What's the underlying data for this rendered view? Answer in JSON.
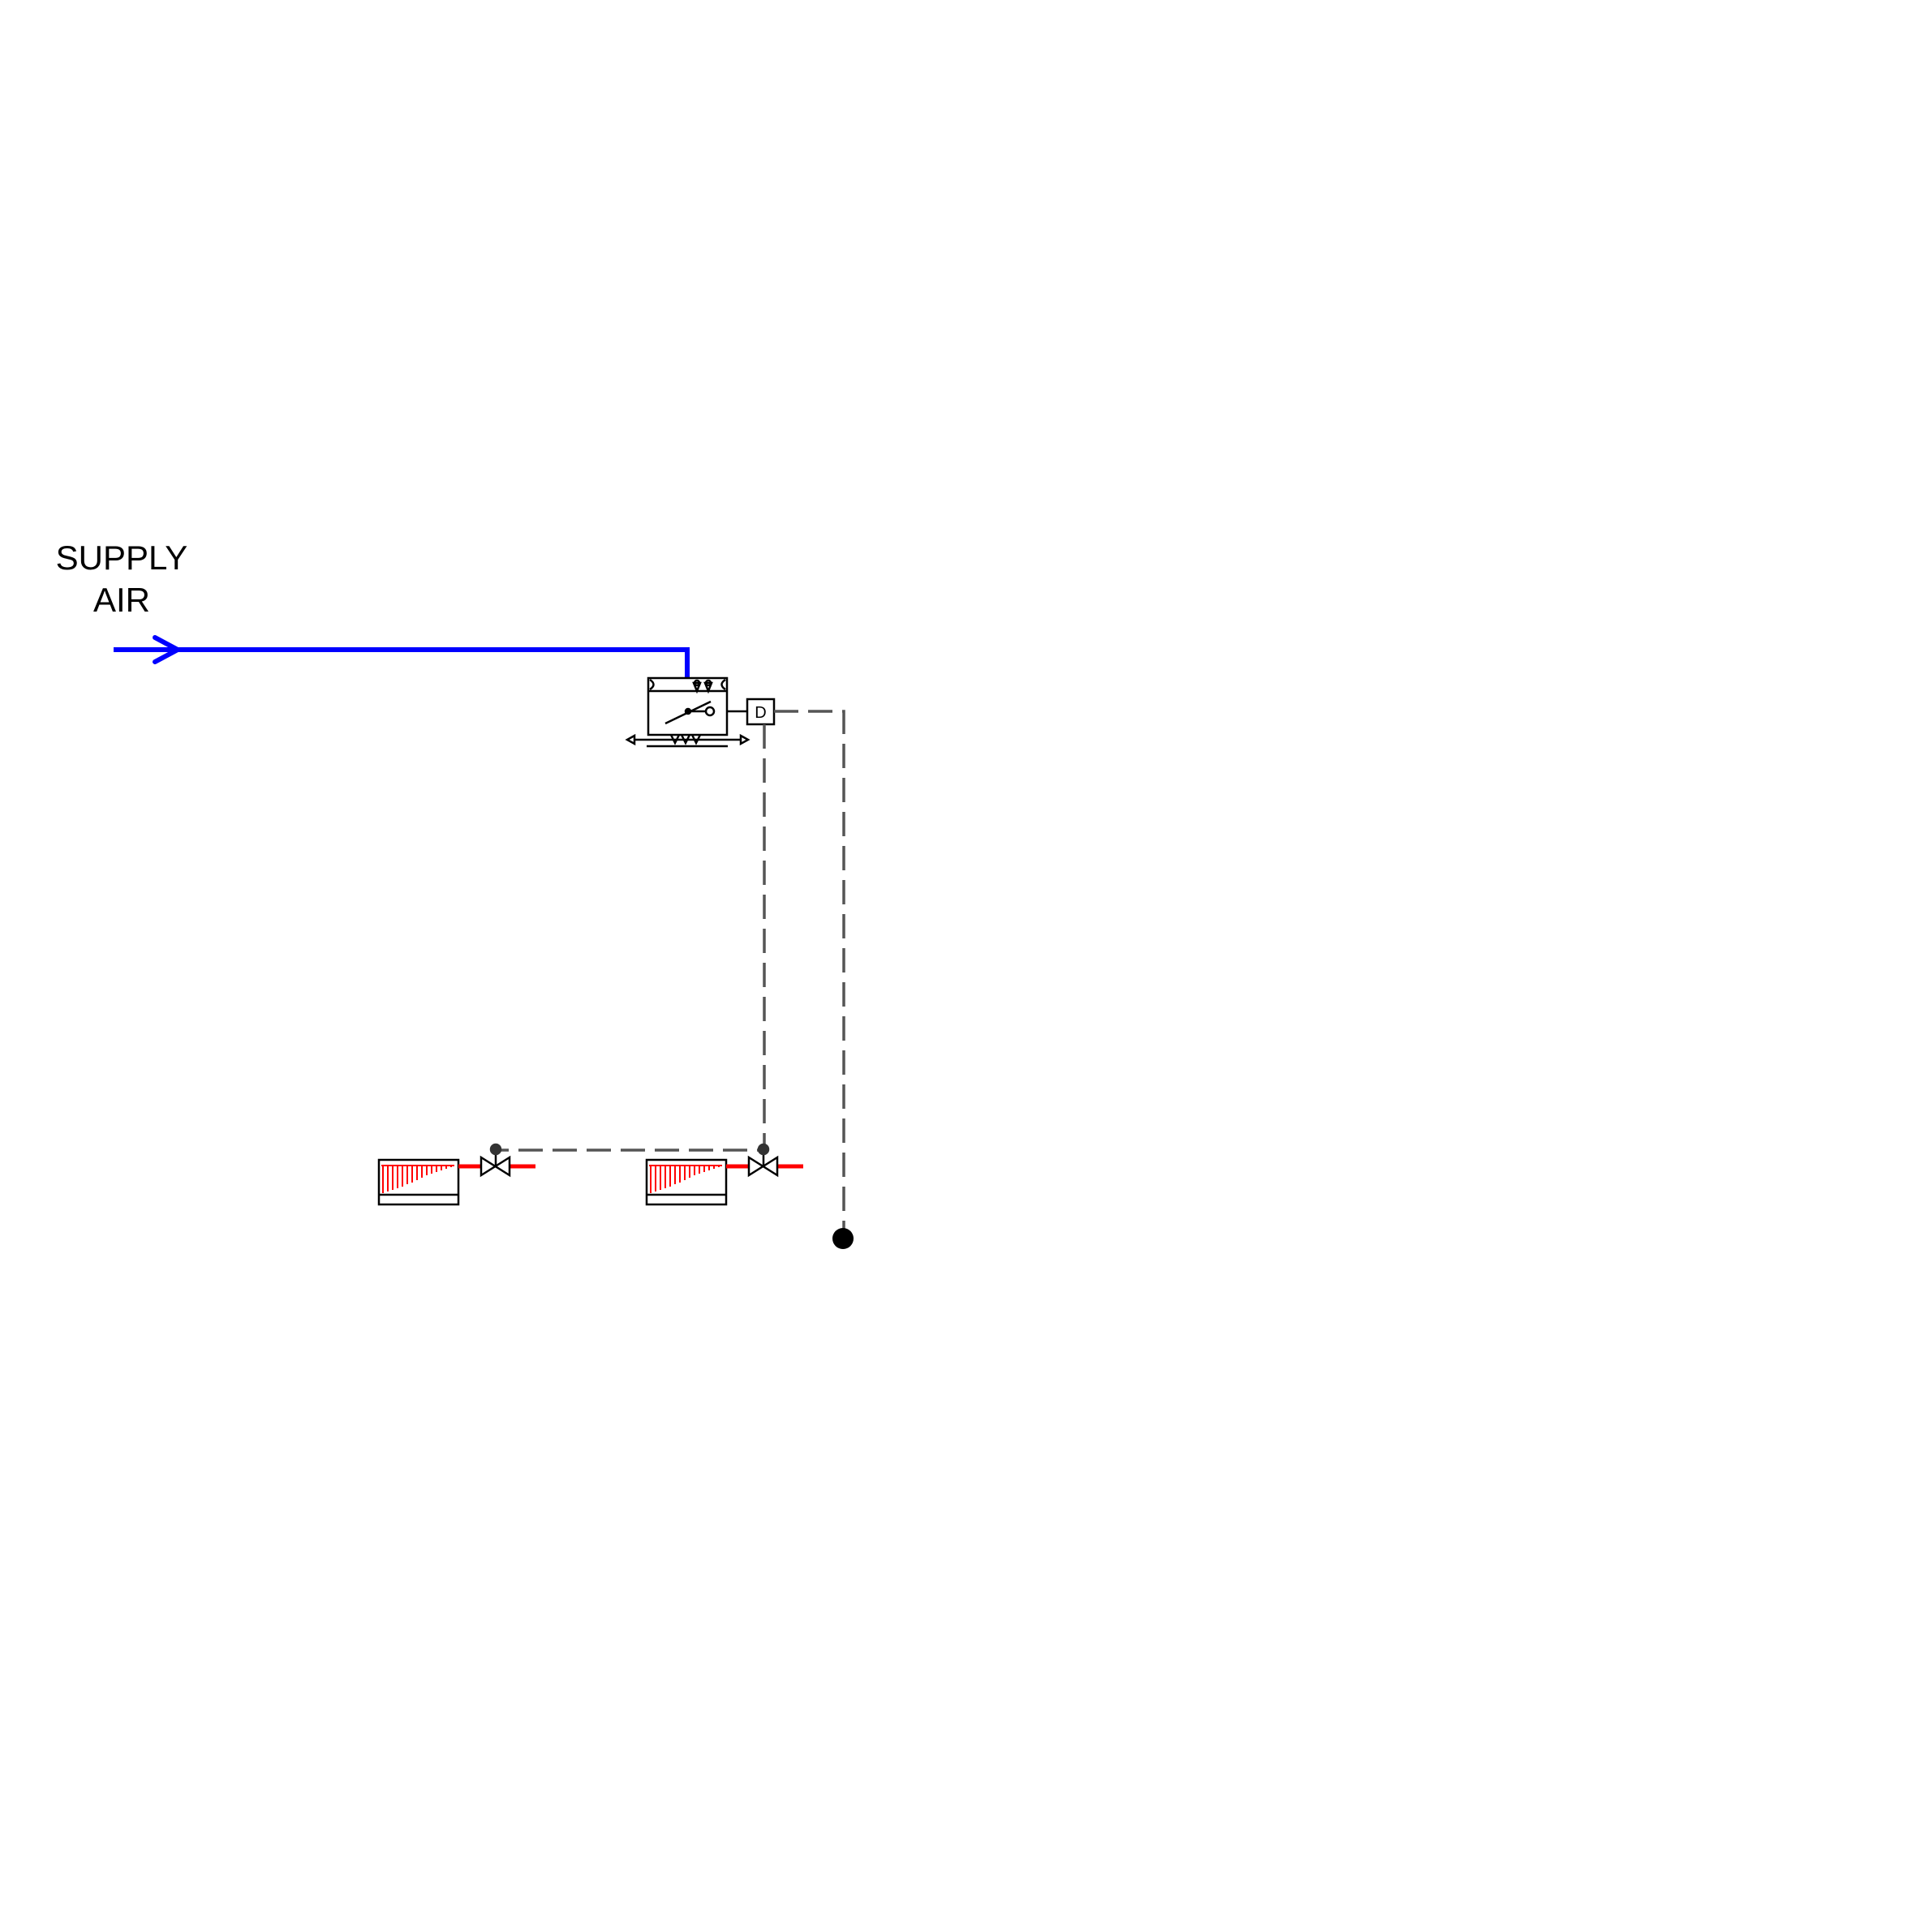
{
  "diagram": {
    "supply_label_line1": "SUPPLY",
    "supply_label_line2": "AIR",
    "damper_actuator_letter": "D"
  },
  "colors": {
    "supply_air_duct": "#0000ff",
    "hot_water_pipe": "#ff0000",
    "control_wire": "#555555",
    "symbol_stroke": "#000000",
    "radiator_fins": "#ff0000"
  },
  "icons": {
    "vav_box": "vav-box-icon",
    "damper_actuator": "damper-actuator-icon",
    "radiator": "radiator-icon",
    "control_valve": "control-valve-icon",
    "controller_node": "controller-node-icon",
    "flow_arrow": "flow-arrow-icon"
  }
}
